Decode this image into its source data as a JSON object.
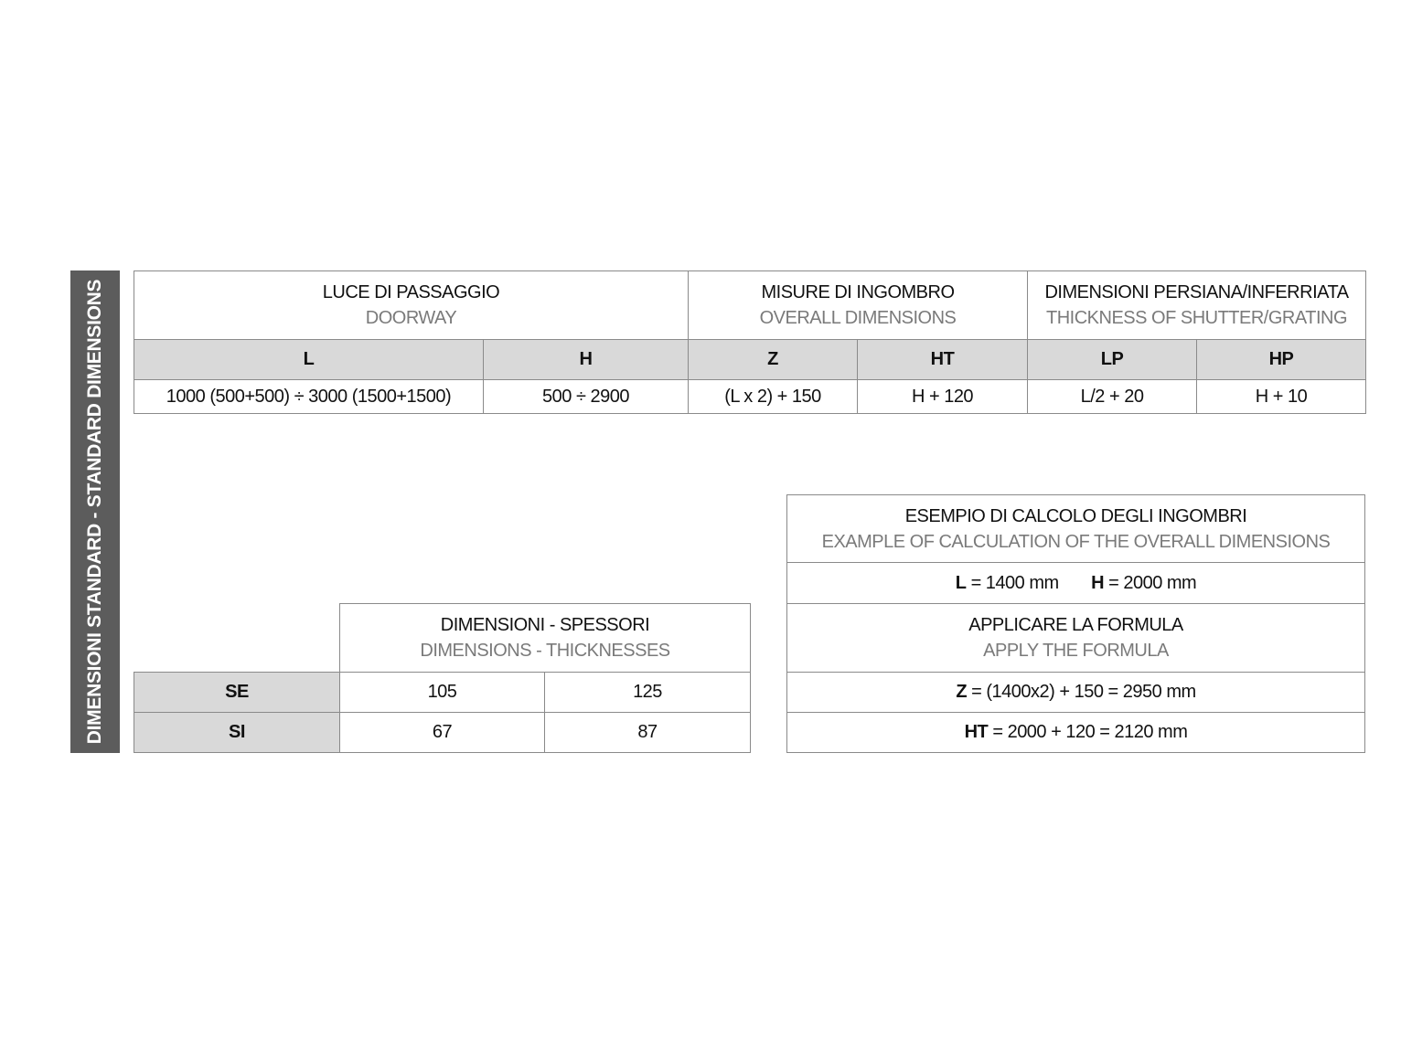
{
  "side_label": "DIMENSIONI STANDARD - STANDARD DIMENSIONS",
  "standard": {
    "groups": [
      {
        "it": "LUCE DI PASSAGGIO",
        "en": "DOORWAY"
      },
      {
        "it": "MISURE DI INGOMBRO",
        "en": "OVERALL DIMENSIONS"
      },
      {
        "it": "DIMENSIONI PERSIANA/INFERRIATA",
        "en": "THICKNESS OF SHUTTER/GRATING"
      }
    ],
    "columns": [
      "L",
      "H",
      "Z",
      "HT",
      "LP",
      "HP"
    ],
    "values": [
      "1000 (500+500) ÷ 3000 (1500+1500)",
      "500 ÷ 2900",
      "(L x 2) + 150",
      "H + 120",
      "L/2 + 20",
      "H + 10"
    ]
  },
  "thickness": {
    "it": "DIMENSIONI - SPESSORI",
    "en": "DIMENSIONS - THICKNESSES",
    "rows": [
      {
        "label": "SE",
        "values": [
          "105",
          "125"
        ]
      },
      {
        "label": "SI",
        "values": [
          "67",
          "87"
        ]
      }
    ]
  },
  "example": {
    "it": "ESEMPIO DI CALCOLO DEGLI INGOMBRI",
    "en": "EXAMPLE OF CALCULATION OF THE OVERALL DIMENSIONS",
    "l_key": "L",
    "l_val": "= 1400 mm",
    "h_key": "H",
    "h_val": "= 2000 mm",
    "formula_it": "APPLICARE LA FORMULA",
    "formula_en": "APPLY THE FORMULA",
    "z_key": "Z",
    "z_val": "= (1400x2) + 150 = 2950 mm",
    "ht_key": "HT",
    "ht_val": "= 2000 + 120 = 2120 mm"
  }
}
